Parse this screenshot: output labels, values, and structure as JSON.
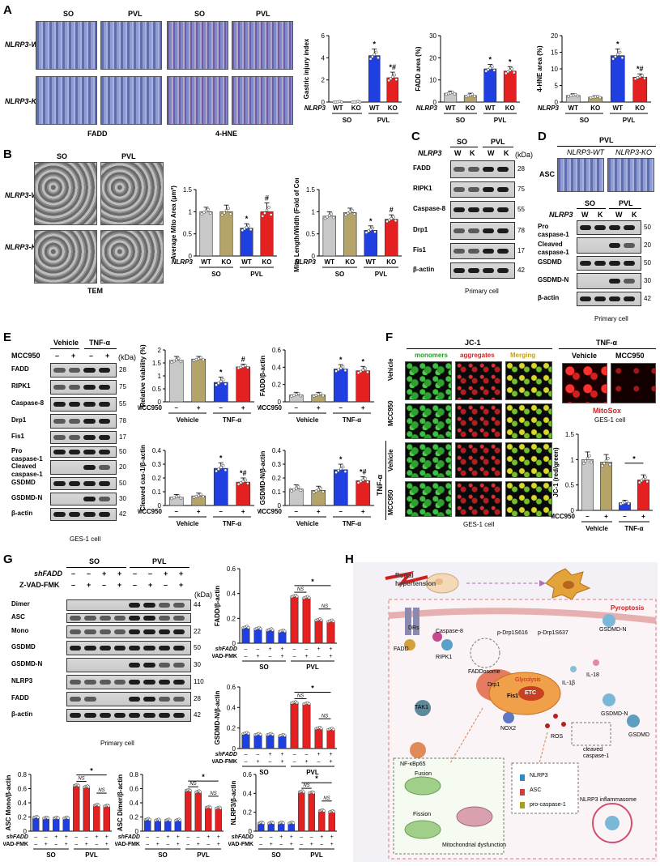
{
  "panels": {
    "A": {
      "label": "A",
      "col_headers": [
        "SO",
        "PVL",
        "SO",
        "PVL"
      ],
      "row_labels": [
        "NLRP3-WT",
        "NLRP3-KO"
      ],
      "bottom_labels": [
        "FADD",
        "4-HNE"
      ]
    },
    "B": {
      "label": "B",
      "col_headers": [
        "SO",
        "PVL"
      ],
      "row_labels": [
        "NLRP3-WT",
        "NLRP3-KO"
      ],
      "bottom_label": "TEM"
    },
    "C": {
      "label": "C",
      "groups": [
        "SO",
        "PVL"
      ],
      "genotype_label": "NLRP3",
      "lanes": [
        "W",
        "K",
        "W",
        "K"
      ],
      "kda_label": "(kDa)",
      "rows": [
        {
          "name": "FADD",
          "kda": "28"
        },
        {
          "name": "RIPK1",
          "kda": "75"
        },
        {
          "name": "Caspase-8",
          "kda": "55"
        },
        {
          "name": "Drp1",
          "kda": "78"
        },
        {
          "name": "Fis1",
          "kda": "17"
        },
        {
          "name": "β-actin",
          "kda": "42"
        }
      ],
      "caption": "Primary cell"
    },
    "D": {
      "label": "D",
      "group_header": "PVL",
      "image_labels": [
        "NLRP3-WT",
        "NLRP3-KO"
      ],
      "row_label": "ASC",
      "groups": [
        "SO",
        "PVL"
      ],
      "genotype_label": "NLRP3",
      "lanes": [
        "W",
        "K",
        "W",
        "K"
      ],
      "rows": [
        {
          "name": "Pro caspase-1",
          "kda": "50"
        },
        {
          "name": "Cleaved caspase-1",
          "kda": "20"
        },
        {
          "name": "GSDMD",
          "kda": "50"
        },
        {
          "name": "GSDMD-N",
          "kda": "30"
        },
        {
          "name": "β-actin",
          "kda": "42"
        }
      ],
      "caption": "Primary cell"
    },
    "E": {
      "label": "E",
      "groups": [
        "Vehicle",
        "TNF-α"
      ],
      "treatment_label": "MCC950",
      "signs": [
        "–",
        "+",
        "–",
        "+"
      ],
      "kda_label": "(kDa)",
      "rows": [
        {
          "name": "FADD",
          "kda": "28"
        },
        {
          "name": "RIPK1",
          "kda": "75"
        },
        {
          "name": "Caspase-8",
          "kda": "55"
        },
        {
          "name": "Drp1",
          "kda": "78"
        },
        {
          "name": "Fis1",
          "kda": "17"
        },
        {
          "name": "Pro caspase-1",
          "kda": "50"
        },
        {
          "name": "Cleaved caspase-1",
          "kda": "20"
        },
        {
          "name": "GSDMD",
          "kda": "50"
        },
        {
          "name": "GSDMD-N",
          "kda": "30"
        },
        {
          "name": "β-actin",
          "kda": "42"
        }
      ],
      "caption": "GES-1 cell"
    },
    "F": {
      "label": "F",
      "title": "JC-1",
      "channels": [
        "monomers",
        "aggregates",
        "Merging"
      ],
      "row_labels": [
        "Vehicle",
        "MCC950",
        "Vehicle",
        "MCC950"
      ],
      "group_labels": [
        "TNF-α"
      ],
      "right_title": "TNF-α",
      "right_cols": [
        "Vehicle",
        "MCC950"
      ],
      "stain": "MitoSox",
      "right_caption": "GES-1 cell",
      "caption": "GES-1 cell"
    },
    "G": {
      "label": "G",
      "groups": [
        "SO",
        "PVL"
      ],
      "row1_label": "shFADD",
      "row2_label": "Z-VAD-FMK",
      "row1_signs": [
        "–",
        "–",
        "+",
        "+",
        "–",
        "–",
        "+",
        "+"
      ],
      "row2_signs": [
        "–",
        "+",
        "–",
        "+",
        "–",
        "+",
        "–",
        "+"
      ],
      "kda_label": "(kDa)",
      "rows": [
        {
          "name": "Dimer",
          "kda": "44"
        },
        {
          "name": "ASC",
          "kda": ""
        },
        {
          "name": "Mono",
          "kda": "22"
        },
        {
          "name": "GSDMD",
          "kda": "50"
        },
        {
          "name": "GSDMD-N",
          "kda": "30"
        },
        {
          "name": "NLRP3",
          "kda": "110"
        },
        {
          "name": "FADD",
          "kda": "28"
        },
        {
          "name": "β-actin",
          "kda": "42"
        }
      ],
      "caption": "Primary cell"
    },
    "H": {
      "label": "H",
      "labels": {
        "portal": "Portal hypertension",
        "pyroptosis": "Pyroptosis",
        "drs": "DRs",
        "fadd": "FADD",
        "casp8": "Caspase-8",
        "ripk1": "RIPK1",
        "faddosome": "FADDosome",
        "drp1p616": "p-Drp1S616",
        "drp1p637": "p-Drp1S637",
        "glycolysis": "Glycolysis",
        "drp1": "Drp1",
        "fis1": "Fis1",
        "etc": "ETC",
        "tak1": "TAK1",
        "nfkb": "NF-κBp65",
        "nox2": "NOX2",
        "ros": "ROS",
        "il1b": "IL-1β",
        "il18": "IL-18",
        "gsdmdn_top": "GSDMD-N",
        "gsdmdn": "GSDMD-N",
        "gsdmd": "GSDMD",
        "cleaved": "cleaved caspase-1",
        "nlrp3": "NLRP3",
        "asc": "ASC",
        "procasp": "pro-caspase-1",
        "inflammasome": "NLRP3 inflammasome",
        "fusion": "Fusion",
        "fission": "Fission",
        "mito": "Mitochondrial dysfunction"
      }
    }
  },
  "chart_data": [
    {
      "id": "A1",
      "type": "bar",
      "ylabel": "Gastric injury index",
      "ylim": [
        0,
        6
      ],
      "yticks": [
        0,
        2,
        4,
        6
      ],
      "genotype_label": "NLRP3",
      "categories": [
        "WT",
        "KO",
        "WT",
        "KO"
      ],
      "groups": [
        "SO",
        "PVL"
      ],
      "values": [
        0,
        0,
        4.2,
        2.2
      ],
      "errors": [
        0,
        0,
        0.6,
        0.5
      ],
      "colors": [
        "#c8c8c8",
        "#b5a46a",
        "#1f3fe0",
        "#e52020"
      ],
      "annotations": [
        "",
        "",
        "*",
        "*#"
      ]
    },
    {
      "id": "A2",
      "type": "bar",
      "ylabel": "FADD area (%)",
      "ylim": [
        0,
        30
      ],
      "yticks": [
        0,
        10,
        20,
        30
      ],
      "genotype_label": "NLRP3",
      "categories": [
        "WT",
        "KO",
        "WT",
        "KO"
      ],
      "groups": [
        "SO",
        "PVL"
      ],
      "values": [
        4,
        3,
        15,
        14
      ],
      "errors": [
        1,
        1,
        2,
        2
      ],
      "colors": [
        "#c8c8c8",
        "#b5a46a",
        "#1f3fe0",
        "#e52020"
      ],
      "annotations": [
        "",
        "",
        "*",
        "*"
      ]
    },
    {
      "id": "A3",
      "type": "bar",
      "ylabel": "4-HNE area (%)",
      "ylim": [
        0,
        20
      ],
      "yticks": [
        0,
        5,
        10,
        15,
        20
      ],
      "genotype_label": "NLRP3",
      "categories": [
        "WT",
        "KO",
        "WT",
        "KO"
      ],
      "groups": [
        "SO",
        "PVL"
      ],
      "values": [
        2,
        1.5,
        14,
        7.5
      ],
      "errors": [
        0.5,
        0.4,
        2,
        1
      ],
      "colors": [
        "#c8c8c8",
        "#b5a46a",
        "#1f3fe0",
        "#e52020"
      ],
      "annotations": [
        "",
        "",
        "*",
        "*#"
      ]
    },
    {
      "id": "B1",
      "type": "bar",
      "ylabel": "Average Mito Area (μm²)",
      "ylim": [
        0,
        1.5
      ],
      "yticks": [
        0.0,
        0.5,
        1.0,
        1.5
      ],
      "genotype_label": "NLRP3",
      "categories": [
        "WT",
        "KO",
        "WT",
        "KO"
      ],
      "groups": [
        "SO",
        "PVL"
      ],
      "values": [
        1.0,
        1.0,
        0.63,
        1.0
      ],
      "errors": [
        0.1,
        0.15,
        0.1,
        0.2
      ],
      "colors": [
        "#c8c8c8",
        "#b5a46a",
        "#1f3fe0",
        "#e52020"
      ],
      "annotations": [
        "",
        "",
        "*",
        "#"
      ]
    },
    {
      "id": "B2",
      "type": "bar",
      "ylabel": "Mito Length/Width (Fold of Con)",
      "ylim": [
        0,
        1.5
      ],
      "yticks": [
        0.0,
        0.5,
        1.0,
        1.5
      ],
      "genotype_label": "NLRP3",
      "categories": [
        "WT",
        "KO",
        "WT",
        "KO"
      ],
      "groups": [
        "SO",
        "PVL"
      ],
      "values": [
        0.9,
        0.98,
        0.58,
        0.83
      ],
      "errors": [
        0.1,
        0.1,
        0.1,
        0.1
      ],
      "colors": [
        "#c8c8c8",
        "#b5a46a",
        "#1f3fe0",
        "#e52020"
      ],
      "annotations": [
        "",
        "",
        "*",
        "#"
      ]
    },
    {
      "id": "E1",
      "type": "bar",
      "ylabel": "Relative viability (%)",
      "ylim": [
        0,
        2.0
      ],
      "yticks": [
        0.0,
        0.5,
        1.0,
        1.5,
        2.0
      ],
      "treatment_label": "MCC950",
      "categories": [
        "–",
        "+",
        "–",
        "+"
      ],
      "groups": [
        "Vehicle",
        "TNF-α"
      ],
      "values": [
        1.6,
        1.65,
        0.75,
        1.35
      ],
      "errors": [
        0.15,
        0.1,
        0.2,
        0.1
      ],
      "colors": [
        "#c8c8c8",
        "#b5a46a",
        "#1f3fe0",
        "#e52020"
      ],
      "annotations": [
        "",
        "",
        "*",
        "#"
      ]
    },
    {
      "id": "E2",
      "type": "bar",
      "ylabel": "FADD/β-actin",
      "ylim": [
        0,
        0.6
      ],
      "yticks": [
        0.0,
        0.2,
        0.4,
        0.6
      ],
      "treatment_label": "MCC950",
      "categories": [
        "–",
        "+",
        "–",
        "+"
      ],
      "groups": [
        "Vehicle",
        "TNF-α"
      ],
      "values": [
        0.08,
        0.08,
        0.38,
        0.36
      ],
      "errors": [
        0.03,
        0.03,
        0.05,
        0.05
      ],
      "colors": [
        "#c8c8c8",
        "#b5a46a",
        "#1f3fe0",
        "#e52020"
      ],
      "annotations": [
        "",
        "",
        "*",
        "*"
      ]
    },
    {
      "id": "E3",
      "type": "bar",
      "ylabel": "Cleaved cas-1/β-actin",
      "ylim": [
        0,
        0.4
      ],
      "yticks": [
        0.0,
        0.1,
        0.2,
        0.3,
        0.4
      ],
      "treatment_label": "MCC950",
      "categories": [
        "–",
        "+",
        "–",
        "+"
      ],
      "groups": [
        "Vehicle",
        "TNF-α"
      ],
      "values": [
        0.06,
        0.07,
        0.27,
        0.17
      ],
      "errors": [
        0.02,
        0.02,
        0.04,
        0.03
      ],
      "colors": [
        "#c8c8c8",
        "#b5a46a",
        "#1f3fe0",
        "#e52020"
      ],
      "annotations": [
        "",
        "",
        "*",
        "*#"
      ]
    },
    {
      "id": "E4",
      "type": "bar",
      "ylabel": "GSDMD-N/β-actin",
      "ylim": [
        0,
        0.4
      ],
      "yticks": [
        0.0,
        0.1,
        0.2,
        0.3,
        0.4
      ],
      "treatment_label": "MCC950",
      "categories": [
        "–",
        "+",
        "–",
        "+"
      ],
      "groups": [
        "Vehicle",
        "TNF-α"
      ],
      "values": [
        0.12,
        0.11,
        0.26,
        0.18
      ],
      "errors": [
        0.03,
        0.03,
        0.04,
        0.03
      ],
      "colors": [
        "#c8c8c8",
        "#b5a46a",
        "#1f3fe0",
        "#e52020"
      ],
      "annotations": [
        "",
        "",
        "*",
        "*#"
      ]
    },
    {
      "id": "F1",
      "type": "bar",
      "ylabel": "JC-1 (red/green)",
      "ylim": [
        0,
        1.5
      ],
      "yticks": [
        0.0,
        0.5,
        1.0,
        1.5
      ],
      "treatment_label": "MCC950",
      "categories": [
        "–",
        "+",
        "–",
        "+"
      ],
      "groups": [
        "Vehicle",
        "TNF-α"
      ],
      "values": [
        1.0,
        0.95,
        0.15,
        0.6
      ],
      "errors": [
        0.15,
        0.15,
        0.05,
        0.1
      ],
      "colors": [
        "#c8c8c8",
        "#b5a46a",
        "#1f3fe0",
        "#e52020"
      ],
      "annotations": [
        "",
        "",
        "",
        ""
      ],
      "bracket": {
        "from": 2,
        "to": 3,
        "text": "*"
      }
    },
    {
      "id": "G1",
      "type": "bar",
      "ylabel": "FADD/β-actin",
      "ylim": [
        0,
        0.6
      ],
      "yticks": [
        0.0,
        0.2,
        0.4,
        0.6
      ],
      "row1_label": "shFADD",
      "row2_label": "Z-VAD-FMK",
      "row1_signs": [
        "–",
        "–",
        "+",
        "+",
        "–",
        "–",
        "+",
        "+"
      ],
      "row2_signs": [
        "–",
        "+",
        "–",
        "+",
        "–",
        "+",
        "–",
        "+"
      ],
      "groups": [
        "SO",
        "PVL"
      ],
      "values": [
        0.13,
        0.12,
        0.11,
        0.1,
        0.38,
        0.37,
        0.19,
        0.18
      ],
      "colors": [
        "#1f3fe0",
        "#1f3fe0",
        "#1f3fe0",
        "#1f3fe0",
        "#e52020",
        "#e52020",
        "#e52020",
        "#e52020"
      ],
      "ns_pairs": [
        "NS",
        "NS"
      ],
      "bracket": "*"
    },
    {
      "id": "G2",
      "type": "bar",
      "ylabel": "GSDMD-N/β-actin",
      "ylim": [
        0,
        0.6
      ],
      "yticks": [
        0.0,
        0.2,
        0.4,
        0.6
      ],
      "row1_label": "shFADD",
      "row2_label": "Z-VAD-FMK",
      "row1_signs": [
        "–",
        "–",
        "+",
        "+",
        "–",
        "–",
        "+",
        "+"
      ],
      "row2_signs": [
        "–",
        "+",
        "–",
        "+",
        "–",
        "+",
        "–",
        "+"
      ],
      "groups": [
        "SO",
        "PVL"
      ],
      "values": [
        0.15,
        0.14,
        0.14,
        0.13,
        0.45,
        0.44,
        0.2,
        0.19
      ],
      "colors": [
        "#1f3fe0",
        "#1f3fe0",
        "#1f3fe0",
        "#1f3fe0",
        "#e52020",
        "#e52020",
        "#e52020",
        "#e52020"
      ],
      "ns_pairs": [
        "NS",
        "NS"
      ],
      "bracket": "*"
    },
    {
      "id": "G3",
      "type": "bar",
      "ylabel": "ASC Mono/β-actin",
      "ylim": [
        0,
        0.8
      ],
      "yticks": [
        0.0,
        0.2,
        0.4,
        0.6,
        0.8
      ],
      "row1_label": "shFADD",
      "row2_label": "Z-VAD-FMK",
      "row1_signs": [
        "–",
        "–",
        "+",
        "+",
        "–",
        "–",
        "+",
        "+"
      ],
      "row2_signs": [
        "–",
        "+",
        "–",
        "+",
        "–",
        "+",
        "–",
        "+"
      ],
      "groups": [
        "SO",
        "PVL"
      ],
      "values": [
        0.2,
        0.19,
        0.19,
        0.19,
        0.65,
        0.63,
        0.37,
        0.36
      ],
      "colors": [
        "#1f3fe0",
        "#1f3fe0",
        "#1f3fe0",
        "#1f3fe0",
        "#e52020",
        "#e52020",
        "#e52020",
        "#e52020"
      ],
      "ns_pairs": [
        "NS",
        "NS"
      ],
      "bracket": "*"
    },
    {
      "id": "G4",
      "type": "bar",
      "ylabel": "ASC Dimer/β-actin",
      "ylim": [
        0,
        0.8
      ],
      "yticks": [
        0.0,
        0.2,
        0.4,
        0.6,
        0.8
      ],
      "row1_label": "shFADD",
      "row2_label": "Z-VAD-FMK",
      "row1_signs": [
        "–",
        "–",
        "+",
        "+",
        "–",
        "–",
        "+",
        "+"
      ],
      "row2_signs": [
        "–",
        "+",
        "–",
        "+",
        "–",
        "+",
        "–",
        "+"
      ],
      "groups": [
        "SO",
        "PVL"
      ],
      "values": [
        0.17,
        0.16,
        0.16,
        0.16,
        0.58,
        0.56,
        0.34,
        0.33
      ],
      "colors": [
        "#1f3fe0",
        "#1f3fe0",
        "#1f3fe0",
        "#1f3fe0",
        "#e52020",
        "#e52020",
        "#e52020",
        "#e52020"
      ],
      "ns_pairs": [
        "NS",
        "NS"
      ],
      "bracket": "*"
    },
    {
      "id": "G5",
      "type": "bar",
      "ylabel": "NLRP3/β-actin",
      "ylim": [
        0,
        0.6
      ],
      "yticks": [
        0.0,
        0.2,
        0.4,
        0.6
      ],
      "row1_label": "shFADD",
      "row2_label": "Z-VAD-FMK",
      "row1_signs": [
        "–",
        "–",
        "+",
        "+",
        "–",
        "–",
        "+",
        "+"
      ],
      "row2_signs": [
        "–",
        "+",
        "–",
        "+",
        "–",
        "+",
        "–",
        "+"
      ],
      "groups": [
        "SO",
        "PVL"
      ],
      "values": [
        0.09,
        0.09,
        0.09,
        0.09,
        0.42,
        0.41,
        0.22,
        0.21
      ],
      "colors": [
        "#1f3fe0",
        "#1f3fe0",
        "#1f3fe0",
        "#1f3fe0",
        "#e52020",
        "#e52020",
        "#e52020",
        "#e52020"
      ],
      "ns_pairs": [
        "NS",
        "NS"
      ],
      "bracket": "*"
    }
  ]
}
